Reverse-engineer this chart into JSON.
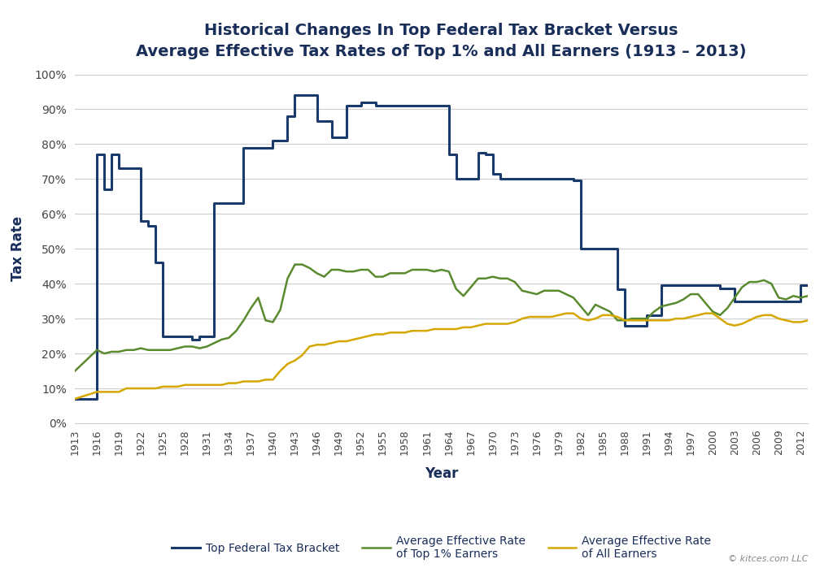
{
  "title": "Historical Changes In Top Federal Tax Bracket Versus\nAverage Effective Tax Rates of Top 1% and All Earners (1913 – 2013)",
  "xlabel": "Year",
  "ylabel": "Tax Rate",
  "background_color": "#ffffff",
  "grid_color": "#cccccc",
  "title_color": "#1a2e5a",
  "tick_label_color": "#444444",
  "copyright_text": "© kitces.com LLC",
  "top_bracket_color": "#1a3a6b",
  "top1_color": "#5a8a2e",
  "all_earners_color": "#d4a800",
  "top_bracket_label": "Top Federal Tax Bracket",
  "top1_label": "Average Effective Rate\nof Top 1% Earners",
  "all_earners_label": "Average Effective Rate\nof All Earners",
  "top_bracket": {
    "years": [
      1913,
      1916,
      1917,
      1918,
      1919,
      1920,
      1921,
      1922,
      1923,
      1924,
      1925,
      1926,
      1927,
      1928,
      1929,
      1930,
      1931,
      1932,
      1933,
      1934,
      1935,
      1936,
      1937,
      1938,
      1939,
      1940,
      1941,
      1942,
      1943,
      1944,
      1945,
      1946,
      1947,
      1948,
      1949,
      1950,
      1951,
      1952,
      1953,
      1954,
      1955,
      1956,
      1957,
      1958,
      1959,
      1960,
      1961,
      1962,
      1963,
      1964,
      1965,
      1966,
      1967,
      1968,
      1969,
      1970,
      1971,
      1972,
      1973,
      1974,
      1975,
      1976,
      1977,
      1978,
      1979,
      1980,
      1981,
      1982,
      1983,
      1984,
      1985,
      1986,
      1987,
      1988,
      1989,
      1990,
      1991,
      1992,
      1993,
      1994,
      1995,
      1996,
      1997,
      1998,
      1999,
      2000,
      2001,
      2002,
      2003,
      2004,
      2005,
      2006,
      2007,
      2008,
      2009,
      2010,
      2011,
      2012,
      2013
    ],
    "values": [
      0.07,
      0.77,
      0.67,
      0.77,
      0.73,
      0.73,
      0.73,
      0.58,
      0.565,
      0.46,
      0.25,
      0.25,
      0.25,
      0.25,
      0.24,
      0.25,
      0.25,
      0.63,
      0.63,
      0.63,
      0.63,
      0.79,
      0.79,
      0.79,
      0.79,
      0.81,
      0.81,
      0.88,
      0.94,
      0.94,
      0.94,
      0.865,
      0.865,
      0.82,
      0.82,
      0.91,
      0.91,
      0.92,
      0.92,
      0.91,
      0.91,
      0.91,
      0.91,
      0.91,
      0.91,
      0.91,
      0.91,
      0.91,
      0.91,
      0.77,
      0.7,
      0.7,
      0.7,
      0.775,
      0.77,
      0.715,
      0.7,
      0.7,
      0.7,
      0.7,
      0.7,
      0.7,
      0.7,
      0.7,
      0.7,
      0.7,
      0.695,
      0.5,
      0.5,
      0.5,
      0.5,
      0.5,
      0.385,
      0.28,
      0.28,
      0.28,
      0.31,
      0.31,
      0.396,
      0.396,
      0.396,
      0.396,
      0.396,
      0.396,
      0.396,
      0.396,
      0.386,
      0.386,
      0.35,
      0.35,
      0.35,
      0.35,
      0.35,
      0.35,
      0.35,
      0.35,
      0.35,
      0.396,
      0.396
    ]
  },
  "top1_effective": {
    "years": [
      1913,
      1916,
      1917,
      1918,
      1919,
      1920,
      1921,
      1922,
      1923,
      1924,
      1925,
      1926,
      1927,
      1928,
      1929,
      1930,
      1931,
      1932,
      1933,
      1934,
      1935,
      1936,
      1937,
      1938,
      1939,
      1940,
      1941,
      1942,
      1943,
      1944,
      1945,
      1946,
      1947,
      1948,
      1949,
      1950,
      1951,
      1952,
      1953,
      1954,
      1955,
      1956,
      1957,
      1958,
      1959,
      1960,
      1961,
      1962,
      1963,
      1964,
      1965,
      1966,
      1967,
      1968,
      1969,
      1970,
      1971,
      1972,
      1973,
      1974,
      1975,
      1976,
      1977,
      1978,
      1979,
      1980,
      1981,
      1982,
      1983,
      1984,
      1985,
      1986,
      1987,
      1988,
      1989,
      1990,
      1991,
      1992,
      1993,
      1994,
      1995,
      1996,
      1997,
      1998,
      1999,
      2000,
      2001,
      2002,
      2003,
      2004,
      2005,
      2006,
      2007,
      2008,
      2009,
      2010,
      2011,
      2012,
      2013
    ],
    "values": [
      0.15,
      0.21,
      0.2,
      0.205,
      0.205,
      0.21,
      0.21,
      0.215,
      0.21,
      0.21,
      0.21,
      0.21,
      0.215,
      0.22,
      0.22,
      0.215,
      0.22,
      0.23,
      0.24,
      0.245,
      0.265,
      0.295,
      0.33,
      0.36,
      0.295,
      0.29,
      0.325,
      0.415,
      0.455,
      0.455,
      0.445,
      0.43,
      0.42,
      0.44,
      0.44,
      0.435,
      0.435,
      0.44,
      0.44,
      0.42,
      0.42,
      0.43,
      0.43,
      0.43,
      0.44,
      0.44,
      0.44,
      0.435,
      0.44,
      0.435,
      0.385,
      0.365,
      0.39,
      0.415,
      0.415,
      0.42,
      0.415,
      0.415,
      0.405,
      0.38,
      0.375,
      0.37,
      0.38,
      0.38,
      0.38,
      0.37,
      0.36,
      0.335,
      0.31,
      0.34,
      0.33,
      0.32,
      0.295,
      0.295,
      0.3,
      0.3,
      0.3,
      0.32,
      0.335,
      0.34,
      0.345,
      0.355,
      0.37,
      0.37,
      0.345,
      0.32,
      0.31,
      0.33,
      0.36,
      0.39,
      0.405,
      0.405,
      0.41,
      0.4,
      0.36,
      0.355,
      0.365,
      0.36,
      0.365
    ]
  },
  "all_earners_effective": {
    "years": [
      1913,
      1916,
      1917,
      1918,
      1919,
      1920,
      1921,
      1922,
      1923,
      1924,
      1925,
      1926,
      1927,
      1928,
      1929,
      1930,
      1931,
      1932,
      1933,
      1934,
      1935,
      1936,
      1937,
      1938,
      1939,
      1940,
      1941,
      1942,
      1943,
      1944,
      1945,
      1946,
      1947,
      1948,
      1949,
      1950,
      1951,
      1952,
      1953,
      1954,
      1955,
      1956,
      1957,
      1958,
      1959,
      1960,
      1961,
      1962,
      1963,
      1964,
      1965,
      1966,
      1967,
      1968,
      1969,
      1970,
      1971,
      1972,
      1973,
      1974,
      1975,
      1976,
      1977,
      1978,
      1979,
      1980,
      1981,
      1982,
      1983,
      1984,
      1985,
      1986,
      1987,
      1988,
      1989,
      1990,
      1991,
      1992,
      1993,
      1994,
      1995,
      1996,
      1997,
      1998,
      1999,
      2000,
      2001,
      2002,
      2003,
      2004,
      2005,
      2006,
      2007,
      2008,
      2009,
      2010,
      2011,
      2012,
      2013
    ],
    "values": [
      0.07,
      0.09,
      0.09,
      0.09,
      0.09,
      0.1,
      0.1,
      0.1,
      0.1,
      0.1,
      0.105,
      0.105,
      0.105,
      0.11,
      0.11,
      0.11,
      0.11,
      0.11,
      0.11,
      0.115,
      0.115,
      0.12,
      0.12,
      0.12,
      0.125,
      0.125,
      0.15,
      0.17,
      0.18,
      0.195,
      0.22,
      0.225,
      0.225,
      0.23,
      0.235,
      0.235,
      0.24,
      0.245,
      0.25,
      0.255,
      0.255,
      0.26,
      0.26,
      0.26,
      0.265,
      0.265,
      0.265,
      0.27,
      0.27,
      0.27,
      0.27,
      0.275,
      0.275,
      0.28,
      0.285,
      0.285,
      0.285,
      0.285,
      0.29,
      0.3,
      0.305,
      0.305,
      0.305,
      0.305,
      0.31,
      0.315,
      0.315,
      0.3,
      0.295,
      0.3,
      0.31,
      0.31,
      0.305,
      0.295,
      0.295,
      0.295,
      0.295,
      0.295,
      0.295,
      0.295,
      0.3,
      0.3,
      0.305,
      0.31,
      0.315,
      0.315,
      0.3,
      0.285,
      0.28,
      0.285,
      0.295,
      0.305,
      0.31,
      0.31,
      0.3,
      0.295,
      0.29,
      0.29,
      0.295
    ]
  },
  "xtick_years": [
    1913,
    1916,
    1919,
    1922,
    1925,
    1928,
    1931,
    1934,
    1937,
    1940,
    1943,
    1946,
    1949,
    1952,
    1955,
    1958,
    1961,
    1964,
    1967,
    1970,
    1973,
    1976,
    1979,
    1982,
    1985,
    1988,
    1991,
    1994,
    1997,
    2000,
    2003,
    2006,
    2009,
    2012
  ],
  "ylim": [
    0,
    1.0
  ],
  "yticks": [
    0.0,
    0.1,
    0.2,
    0.3,
    0.4,
    0.5,
    0.6,
    0.7,
    0.8,
    0.9,
    1.0
  ]
}
